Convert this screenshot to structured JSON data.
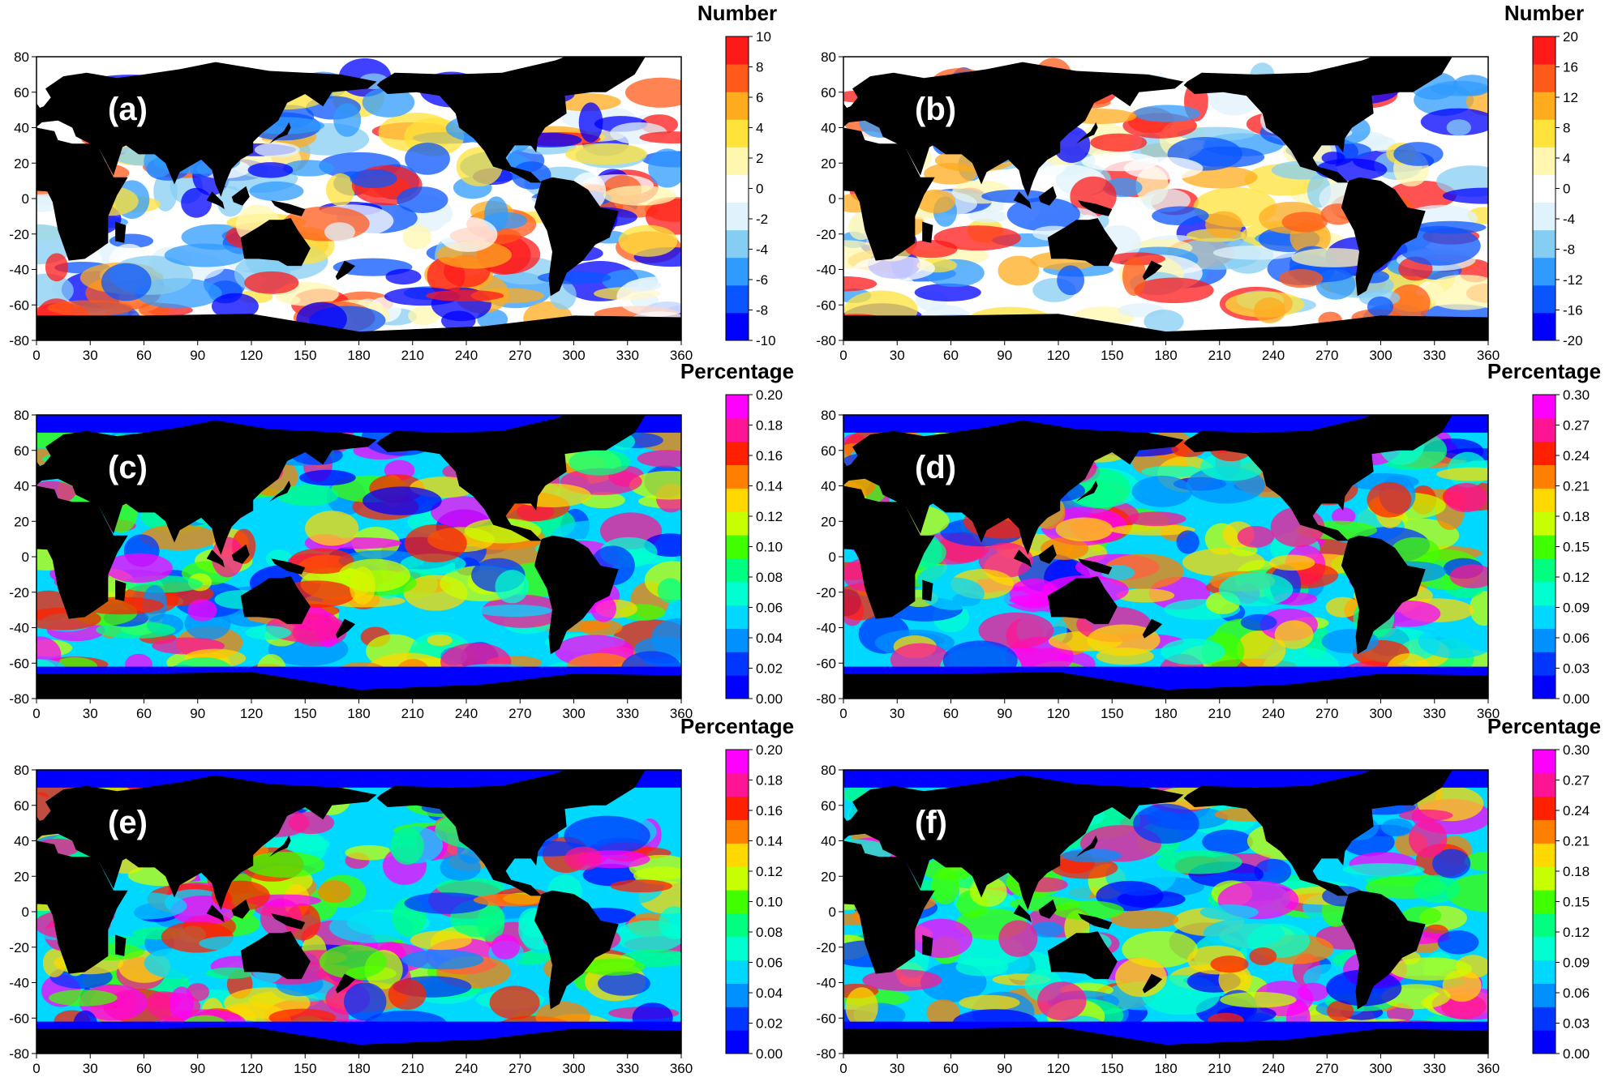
{
  "chart_data": [
    {
      "panel_label": "(a)",
      "type": "heatmap",
      "colorbar_title": "Number",
      "colorbar_ticks": [
        "10",
        "8",
        "6",
        "4",
        "2",
        "0",
        "-2",
        "-4",
        "-6",
        "-8",
        "-10"
      ],
      "cmap": "diverging",
      "vmin": -10,
      "vmax": 10,
      "x_ticks": [
        0,
        30,
        60,
        90,
        120,
        150,
        180,
        210,
        240,
        270,
        300,
        330,
        360
      ],
      "y_ticks": [
        80,
        60,
        40,
        20,
        0,
        -20,
        -40,
        -60,
        -80
      ],
      "xlim": [
        0,
        360
      ],
      "ylim": [
        -80,
        80
      ]
    },
    {
      "panel_label": "(b)",
      "type": "heatmap",
      "colorbar_title": "Number",
      "colorbar_ticks": [
        "20",
        "16",
        "12",
        "8",
        "4",
        "0",
        "-4",
        "-8",
        "-12",
        "-16",
        "-20"
      ],
      "cmap": "diverging",
      "vmin": -20,
      "vmax": 20,
      "x_ticks": [
        0,
        30,
        60,
        90,
        120,
        150,
        180,
        210,
        240,
        270,
        300,
        330,
        360
      ],
      "y_ticks": [
        80,
        60,
        40,
        20,
        0,
        -20,
        -40,
        -60,
        -80
      ],
      "xlim": [
        0,
        360
      ],
      "ylim": [
        -80,
        80
      ]
    },
    {
      "panel_label": "(c)",
      "type": "heatmap",
      "colorbar_title": "Percentage",
      "colorbar_ticks": [
        "0.20",
        "0.18",
        "0.16",
        "0.14",
        "0.12",
        "0.10",
        "0.08",
        "0.06",
        "0.04",
        "0.02",
        "0.00"
      ],
      "cmap": "rainbow",
      "vmin": 0,
      "vmax": 0.2,
      "x_ticks": [
        0,
        30,
        60,
        90,
        120,
        150,
        180,
        210,
        240,
        270,
        300,
        330,
        360
      ],
      "y_ticks": [
        80,
        60,
        40,
        20,
        0,
        -20,
        -40,
        -60,
        -80
      ],
      "xlim": [
        0,
        360
      ],
      "ylim": [
        -80,
        80
      ]
    },
    {
      "panel_label": "(d)",
      "type": "heatmap",
      "colorbar_title": "Percentage",
      "colorbar_ticks": [
        "0.30",
        "0.27",
        "0.24",
        "0.21",
        "0.18",
        "0.15",
        "0.12",
        "0.09",
        "0.06",
        "0.03",
        "0.00"
      ],
      "cmap": "rainbow",
      "vmin": 0,
      "vmax": 0.3,
      "x_ticks": [
        0,
        30,
        60,
        90,
        120,
        150,
        180,
        210,
        240,
        270,
        300,
        330,
        360
      ],
      "y_ticks": [
        80,
        60,
        40,
        20,
        0,
        -20,
        -40,
        -60,
        -80
      ],
      "xlim": [
        0,
        360
      ],
      "ylim": [
        -80,
        80
      ]
    },
    {
      "panel_label": "(e)",
      "type": "heatmap",
      "colorbar_title": "Percentage",
      "colorbar_ticks": [
        "0.20",
        "0.18",
        "0.16",
        "0.14",
        "0.12",
        "0.10",
        "0.08",
        "0.06",
        "0.04",
        "0.02",
        "0.00"
      ],
      "cmap": "rainbow",
      "vmin": 0,
      "vmax": 0.2,
      "x_ticks": [
        0,
        30,
        60,
        90,
        120,
        150,
        180,
        210,
        240,
        270,
        300,
        330,
        360
      ],
      "y_ticks": [
        80,
        60,
        40,
        20,
        0,
        -20,
        -40,
        -60,
        -80
      ],
      "xlim": [
        0,
        360
      ],
      "ylim": [
        -80,
        80
      ]
    },
    {
      "panel_label": "(f)",
      "type": "heatmap",
      "colorbar_title": "Percentage",
      "colorbar_ticks": [
        "0.30",
        "0.27",
        "0.24",
        "0.21",
        "0.18",
        "0.15",
        "0.12",
        "0.09",
        "0.06",
        "0.03",
        "0.00"
      ],
      "cmap": "rainbow",
      "vmin": 0,
      "vmax": 0.3,
      "x_ticks": [
        0,
        30,
        60,
        90,
        120,
        150,
        180,
        210,
        240,
        270,
        300,
        330,
        360
      ],
      "y_ticks": [
        80,
        60,
        40,
        20,
        0,
        -20,
        -40,
        -60,
        -80
      ],
      "xlim": [
        0,
        360
      ],
      "ylim": [
        -80,
        80
      ]
    }
  ],
  "colors": {
    "land": "#000000",
    "diverging": [
      "#0000ff",
      "#0a55ff",
      "#2f9bff",
      "#86cdf3",
      "#e0f2fb",
      "#ffffff",
      "#fff7b0",
      "#ffe23a",
      "#ffab1e",
      "#ff5a1a",
      "#ff1a1a"
    ],
    "rainbow": [
      "#0000ff",
      "#0036ff",
      "#0090ff",
      "#00d8ff",
      "#00ffd0",
      "#00ff80",
      "#40ff00",
      "#c8ff00",
      "#ffd800",
      "#ff8000",
      "#ff2000",
      "#ff1493",
      "#ff00ff"
    ]
  }
}
